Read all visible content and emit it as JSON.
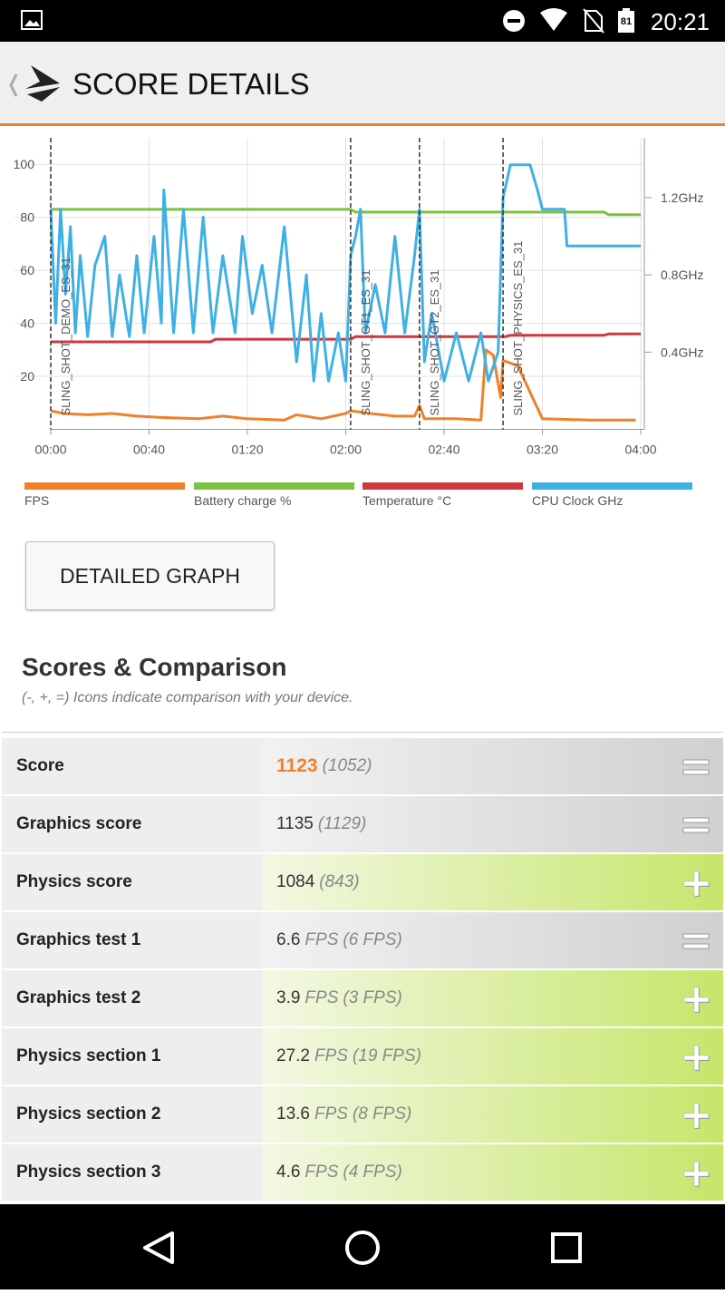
{
  "status_bar": {
    "battery": "81",
    "time": "20:21"
  },
  "header": {
    "title": "SCORE DETAILS"
  },
  "chart_data": {
    "type": "line",
    "xlim": [
      0,
      240
    ],
    "xticks": [
      {
        "value": 0,
        "label": "00:00"
      },
      {
        "value": 40,
        "label": "00:40"
      },
      {
        "value": 80,
        "label": "01:20"
      },
      {
        "value": 120,
        "label": "02:00"
      },
      {
        "value": 160,
        "label": "02:40"
      },
      {
        "value": 200,
        "label": "03:20"
      },
      {
        "value": 240,
        "label": "04:00"
      }
    ],
    "ylim": [
      0,
      110
    ],
    "yticks": [
      20,
      40,
      60,
      80,
      100
    ],
    "y2lim": [
      0,
      1.51
    ],
    "y2ticks": [
      {
        "value": 0.4,
        "label": "0.4GHz"
      },
      {
        "value": 0.8,
        "label": "0.8GHz"
      },
      {
        "value": 1.2,
        "label": "1.2GHz"
      }
    ],
    "grid": true,
    "markers": [
      {
        "x": 0,
        "label": "SLING_SHOT_DEMO_ES_31"
      },
      {
        "x": 122,
        "label": "SLING_SHOT_GT1_ES_31"
      },
      {
        "x": 150,
        "label": "SLING_SHOT_GT2_ES_31"
      },
      {
        "x": 184,
        "label": "SLING_SHOT_PHYSICS_ES_31"
      }
    ],
    "series": [
      {
        "name": "FPS",
        "color": "#f0802a",
        "x": [
          0,
          5,
          15,
          25,
          35,
          45,
          60,
          70,
          80,
          95,
          100,
          110,
          120,
          122,
          130,
          140,
          148,
          150,
          152,
          165,
          175,
          177,
          180,
          183,
          184,
          190,
          195,
          200,
          220,
          238
        ],
        "values": [
          7,
          6,
          5.5,
          6,
          5,
          4.5,
          4,
          5,
          4,
          3.5,
          5.5,
          4,
          6,
          7,
          6,
          5,
          5,
          9,
          4,
          4,
          3.5,
          30,
          28,
          12,
          26,
          24,
          14,
          4,
          3.5,
          3.5
        ]
      },
      {
        "name": "Battery charge %",
        "color": "#7cc242",
        "x": [
          0,
          122,
          124,
          225,
          227,
          240
        ],
        "values": [
          83,
          83,
          82,
          82,
          81,
          81
        ]
      },
      {
        "name": "Temperature °C",
        "color": "#d0383d",
        "x": [
          0,
          65,
          67,
          122,
          124,
          185,
          187,
          225,
          227,
          240
        ],
        "values": [
          33,
          33,
          34,
          34,
          35,
          35,
          35.5,
          35.5,
          36,
          36
        ]
      },
      {
        "name": "CPU Clock GHz",
        "color": "#3fb0e4",
        "axis": "y2",
        "x": [
          0,
          2,
          4,
          6,
          8,
          10,
          12,
          15,
          18,
          22,
          25,
          28,
          32,
          35,
          38,
          42,
          45,
          46,
          50,
          54,
          58,
          62,
          66,
          70,
          75,
          78,
          82,
          86,
          90,
          95,
          100,
          104,
          107,
          110,
          113,
          117,
          120,
          122,
          124,
          126,
          128,
          132,
          136,
          140,
          144,
          148,
          150,
          152,
          155,
          160,
          165,
          170,
          175,
          178,
          182,
          184,
          187,
          195,
          198,
          200,
          209,
          210,
          240
        ],
        "values": [
          1.14,
          0.55,
          1.14,
          0.7,
          1.05,
          0.5,
          0.9,
          0.48,
          0.85,
          1.0,
          0.48,
          0.8,
          0.48,
          0.9,
          0.5,
          1.0,
          0.55,
          1.24,
          0.5,
          1.14,
          0.5,
          1.1,
          0.5,
          0.9,
          0.5,
          1.0,
          0.6,
          0.85,
          0.5,
          1.05,
          0.35,
          0.8,
          0.25,
          0.6,
          0.25,
          0.5,
          0.25,
          0.9,
          1.0,
          1.14,
          0.5,
          0.75,
          0.5,
          1.0,
          0.5,
          0.9,
          1.14,
          0.35,
          0.6,
          0.25,
          0.5,
          0.25,
          0.5,
          0.25,
          0.4,
          1.2,
          1.37,
          1.37,
          1.24,
          1.14,
          1.14,
          0.95,
          0.95
        ]
      }
    ]
  },
  "button": {
    "label": "DETAILED GRAPH"
  },
  "scores": {
    "title": "Scores & Comparison",
    "subtitle": "(-, +, =) Icons indicate comparison with your device.",
    "rows": [
      {
        "label": "Score",
        "value": "1123",
        "reference": "(1052)",
        "comparison": "equal"
      },
      {
        "label": "Graphics score",
        "value": "1135",
        "reference": "(1129)",
        "comparison": "equal"
      },
      {
        "label": "Physics score",
        "value": "1084",
        "reference": "(843)",
        "comparison": "plus"
      },
      {
        "label": "Graphics test 1",
        "value": "6.6",
        "unit": "FPS",
        "reference": "(6 FPS)",
        "comparison": "equal"
      },
      {
        "label": "Graphics test 2",
        "value": "3.9",
        "unit": "FPS",
        "reference": "(3 FPS)",
        "comparison": "plus"
      },
      {
        "label": "Physics section 1",
        "value": "27.2",
        "unit": "FPS",
        "reference": "(19 FPS)",
        "comparison": "plus"
      },
      {
        "label": "Physics section 2",
        "value": "13.6",
        "unit": "FPS",
        "reference": "(8 FPS)",
        "comparison": "plus"
      },
      {
        "label": "Physics section 3",
        "value": "4.6",
        "unit": "FPS",
        "reference": "(4 FPS)",
        "comparison": "plus"
      }
    ]
  }
}
